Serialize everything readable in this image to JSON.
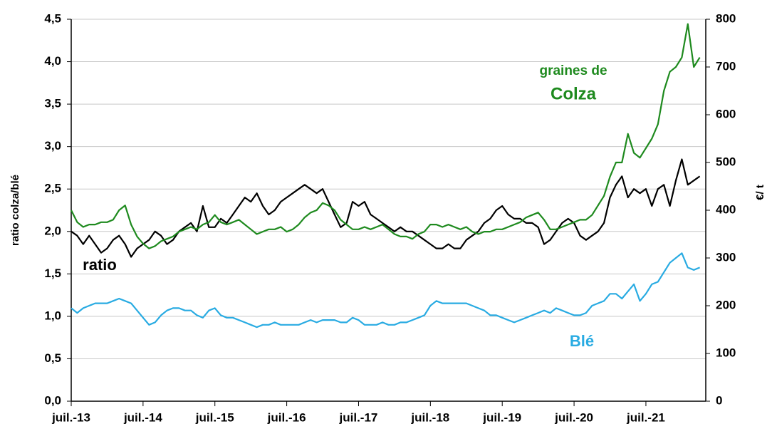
{
  "chart_data": {
    "type": "line",
    "y_label": "ratio colza/blé",
    "y2_label": "€/ t",
    "annotations": [
      {
        "text": "graines de",
        "color": "#1e8a1e"
      },
      {
        "text": "Colza",
        "color": "#1e8a1e"
      },
      {
        "text": "ratio",
        "color": "#000000"
      },
      {
        "text": "Blé",
        "color": "#29abe2"
      }
    ],
    "x": [
      "2013-07",
      "2013-08",
      "2013-09",
      "2013-10",
      "2013-11",
      "2013-12",
      "2014-01",
      "2014-02",
      "2014-03",
      "2014-04",
      "2014-05",
      "2014-06",
      "2014-07",
      "2014-08",
      "2014-09",
      "2014-10",
      "2014-11",
      "2014-12",
      "2015-01",
      "2015-02",
      "2015-03",
      "2015-04",
      "2015-05",
      "2015-06",
      "2015-07",
      "2015-08",
      "2015-09",
      "2015-10",
      "2015-11",
      "2015-12",
      "2016-01",
      "2016-02",
      "2016-03",
      "2016-04",
      "2016-05",
      "2016-06",
      "2016-07",
      "2016-08",
      "2016-09",
      "2016-10",
      "2016-11",
      "2016-12",
      "2017-01",
      "2017-02",
      "2017-03",
      "2017-04",
      "2017-05",
      "2017-06",
      "2017-07",
      "2017-08",
      "2017-09",
      "2017-10",
      "2017-11",
      "2017-12",
      "2018-01",
      "2018-02",
      "2018-03",
      "2018-04",
      "2018-05",
      "2018-06",
      "2018-07",
      "2018-08",
      "2018-09",
      "2018-10",
      "2018-11",
      "2018-12",
      "2019-01",
      "2019-02",
      "2019-03",
      "2019-04",
      "2019-05",
      "2019-06",
      "2019-07",
      "2019-08",
      "2019-09",
      "2019-10",
      "2019-11",
      "2019-12",
      "2020-01",
      "2020-02",
      "2020-03",
      "2020-04",
      "2020-05",
      "2020-06",
      "2020-07",
      "2020-08",
      "2020-09",
      "2020-10",
      "2020-11",
      "2020-12",
      "2021-01",
      "2021-02",
      "2021-03",
      "2021-04",
      "2021-05",
      "2021-06",
      "2021-07",
      "2021-08",
      "2021-09",
      "2021-10",
      "2021-11",
      "2021-12",
      "2022-01",
      "2022-02",
      "2022-03",
      "2022-04"
    ],
    "series": [
      {
        "name": "ratio",
        "color": "#000000",
        "values": [
          2.0,
          1.95,
          1.85,
          1.95,
          1.85,
          1.75,
          1.8,
          1.9,
          1.95,
          1.85,
          1.7,
          1.8,
          1.85,
          1.9,
          2.0,
          1.95,
          1.85,
          1.9,
          2.0,
          2.05,
          2.1,
          2.0,
          2.3,
          2.05,
          2.05,
          2.15,
          2.1,
          2.2,
          2.3,
          2.4,
          2.35,
          2.45,
          2.3,
          2.2,
          2.25,
          2.35,
          2.4,
          2.45,
          2.5,
          2.55,
          2.5,
          2.45,
          2.5,
          2.35,
          2.2,
          2.05,
          2.1,
          2.35,
          2.3,
          2.35,
          2.2,
          2.15,
          2.1,
          2.05,
          2.0,
          2.05,
          2.0,
          2.0,
          1.95,
          1.9,
          1.85,
          1.8,
          1.8,
          1.85,
          1.8,
          1.8,
          1.9,
          1.95,
          2.0,
          2.1,
          2.15,
          2.25,
          2.3,
          2.2,
          2.15,
          2.15,
          2.1,
          2.1,
          2.05,
          1.85,
          1.9,
          2.0,
          2.1,
          2.15,
          2.1,
          1.95,
          1.9,
          1.95,
          2.0,
          2.1,
          2.4,
          2.55,
          2.65,
          2.4,
          2.5,
          2.45,
          2.5,
          2.3,
          2.5,
          2.55,
          2.3,
          2.6,
          2.85,
          2.55,
          2.6,
          2.65
        ]
      },
      {
        "name": "graines de Colza",
        "color": "#1e8a1e",
        "axis": "y2",
        "values": [
          400,
          375,
          365,
          370,
          370,
          375,
          375,
          380,
          400,
          410,
          370,
          345,
          330,
          320,
          325,
          335,
          340,
          345,
          355,
          360,
          365,
          360,
          370,
          375,
          390,
          375,
          370,
          375,
          380,
          370,
          360,
          350,
          355,
          360,
          360,
          365,
          355,
          360,
          370,
          385,
          395,
          400,
          415,
          410,
          400,
          380,
          370,
          360,
          360,
          365,
          360,
          365,
          370,
          360,
          350,
          345,
          345,
          340,
          350,
          355,
          370,
          370,
          365,
          370,
          365,
          360,
          365,
          355,
          350,
          355,
          355,
          360,
          360,
          365,
          370,
          375,
          385,
          390,
          395,
          380,
          360,
          360,
          365,
          370,
          375,
          380,
          380,
          390,
          410,
          430,
          470,
          500,
          500,
          560,
          520,
          510,
          530,
          550,
          580,
          650,
          690,
          700,
          720,
          790,
          700,
          720
        ]
      },
      {
        "name": "Blé",
        "color": "#29abe2",
        "axis": "y2",
        "values": [
          195,
          185,
          195,
          200,
          205,
          205,
          205,
          210,
          215,
          210,
          205,
          190,
          175,
          160,
          165,
          180,
          190,
          195,
          195,
          190,
          190,
          180,
          175,
          190,
          195,
          180,
          175,
          175,
          170,
          165,
          160,
          155,
          160,
          160,
          165,
          160,
          160,
          160,
          160,
          165,
          170,
          165,
          170,
          170,
          170,
          165,
          165,
          175,
          170,
          160,
          160,
          160,
          165,
          160,
          160,
          165,
          165,
          170,
          175,
          180,
          200,
          210,
          205,
          205,
          205,
          205,
          205,
          200,
          195,
          190,
          180,
          180,
          175,
          170,
          165,
          170,
          175,
          180,
          185,
          190,
          185,
          195,
          190,
          185,
          180,
          180,
          185,
          200,
          205,
          210,
          225,
          225,
          215,
          230,
          245,
          210,
          225,
          245,
          250,
          270,
          290,
          300,
          310,
          280,
          275,
          280
        ]
      }
    ],
    "xlim": [
      "2013-07",
      "2022-05"
    ],
    "xticks": [
      {
        "value": "2013-07",
        "label": "juil.-13"
      },
      {
        "value": "2014-07",
        "label": "juil.-14"
      },
      {
        "value": "2015-07",
        "label": "juil.-15"
      },
      {
        "value": "2016-07",
        "label": "juil.-16"
      },
      {
        "value": "2017-07",
        "label": "juil.-17"
      },
      {
        "value": "2018-07",
        "label": "juil.-18"
      },
      {
        "value": "2019-07",
        "label": "juil.-19"
      },
      {
        "value": "2020-07",
        "label": "juil.-20"
      },
      {
        "value": "2021-07",
        "label": "juil.-21"
      }
    ],
    "ylim": [
      0,
      4.5
    ],
    "yticks": [
      {
        "value": 0,
        "label": "0,0"
      },
      {
        "value": 0.5,
        "label": "0,5"
      },
      {
        "value": 1,
        "label": "1,0"
      },
      {
        "value": 1.5,
        "label": "1,5"
      },
      {
        "value": 2,
        "label": "2,0"
      },
      {
        "value": 2.5,
        "label": "2,5"
      },
      {
        "value": 3,
        "label": "3,0"
      },
      {
        "value": 3.5,
        "label": "3,5"
      },
      {
        "value": 4,
        "label": "4,0"
      },
      {
        "value": 4.5,
        "label": "4,5"
      }
    ],
    "y2lim": [
      0,
      800
    ],
    "y2ticks": [
      0,
      100,
      200,
      300,
      400,
      500,
      600,
      700,
      800
    ],
    "grid": true
  }
}
